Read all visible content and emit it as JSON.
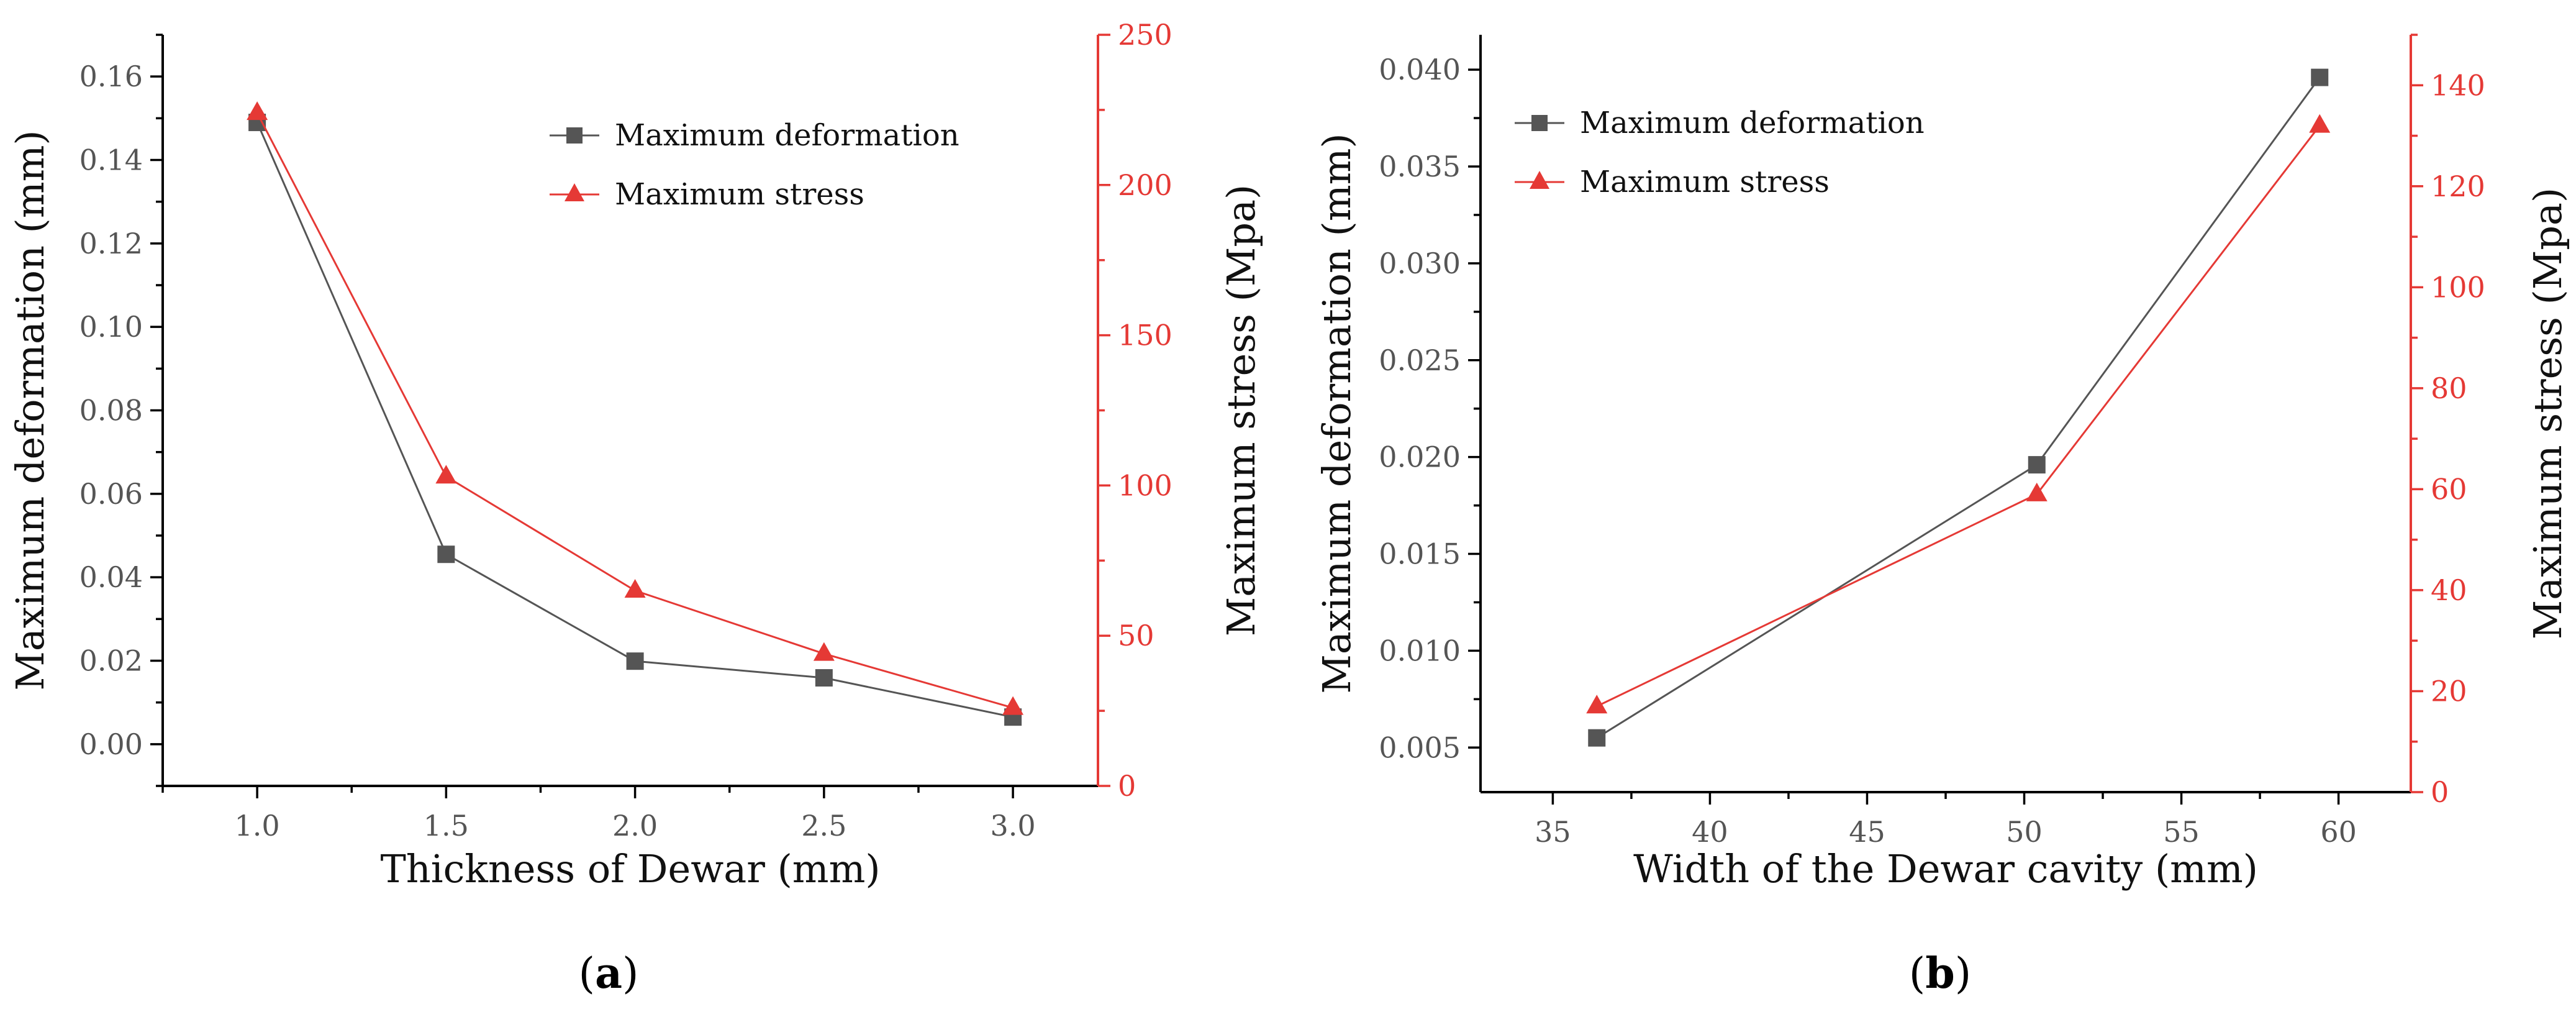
{
  "chart_data": [
    {
      "type": "line",
      "caption_letter": "a",
      "xlabel": "Thickness of Dewar (mm)",
      "ylabel_left": "Maximum deformation (mm)",
      "ylabel_right": "Maximum stress (Mpa)",
      "x": [
        1.0,
        1.5,
        2.0,
        2.5,
        3.0
      ],
      "x_ticks": [
        "1.0",
        "1.5",
        "2.0",
        "2.5",
        "3.0"
      ],
      "x_tick_values": [
        1.0,
        1.5,
        2.0,
        2.5,
        3.0
      ],
      "xlim": [
        0.75,
        3.225
      ],
      "ylim_left": [
        -0.01,
        0.17
      ],
      "y_ticks_left": [
        "0.00",
        "0.02",
        "0.04",
        "0.06",
        "0.08",
        "0.10",
        "0.12",
        "0.14",
        "0.16"
      ],
      "y_tick_values_left": [
        0.0,
        0.02,
        0.04,
        0.06,
        0.08,
        0.1,
        0.12,
        0.14,
        0.16
      ],
      "ylim_right": [
        0,
        250
      ],
      "y_ticks_right": [
        "0",
        "50",
        "100",
        "150",
        "200",
        "250"
      ],
      "y_tick_values_right": [
        0,
        50,
        100,
        150,
        200,
        250
      ],
      "legend_position": "top-right",
      "series": [
        {
          "name": "Maximum deformation",
          "axis": "left",
          "marker": "square",
          "color": "#555555",
          "values": [
            0.149,
            0.0455,
            0.0199,
            0.0159,
            0.0065
          ]
        },
        {
          "name": "Maximum stress",
          "axis": "right",
          "marker": "triangle",
          "color": "#e53935",
          "values": [
            224,
            103,
            65,
            44,
            26
          ]
        }
      ]
    },
    {
      "type": "line",
      "caption_letter": "b",
      "xlabel": "Width of the Dewar cavity (mm)",
      "ylabel_left": "Maximum deformation (mm)",
      "ylabel_right": "Maximum stress (Mpa)",
      "x": [
        36.4,
        50.4,
        59.4
      ],
      "x_ticks": [
        "35",
        "40",
        "45",
        "50",
        "55",
        "60"
      ],
      "x_tick_values": [
        35,
        40,
        45,
        50,
        55,
        60
      ],
      "xlim": [
        32.7,
        62.3
      ],
      "ylim_left": [
        0.0027,
        0.0418
      ],
      "y_ticks_left": [
        "0.005",
        "0.010",
        "0.015",
        "0.020",
        "0.025",
        "0.030",
        "0.035",
        "0.040"
      ],
      "y_tick_values_left": [
        0.005,
        0.01,
        0.015,
        0.02,
        0.025,
        0.03,
        0.035,
        0.04
      ],
      "ylim_right": [
        0,
        150
      ],
      "y_ticks_right": [
        "0",
        "20",
        "40",
        "60",
        "80",
        "100",
        "120",
        "140"
      ],
      "y_tick_values_right": [
        0,
        20,
        40,
        60,
        80,
        100,
        120,
        140
      ],
      "legend_position": "top-left",
      "series": [
        {
          "name": "Maximum deformation",
          "axis": "left",
          "marker": "square",
          "color": "#555555",
          "values": [
            0.0055,
            0.0196,
            0.0396
          ]
        },
        {
          "name": "Maximum stress",
          "axis": "right",
          "marker": "triangle",
          "color": "#e53935",
          "values": [
            17,
            59,
            132
          ]
        }
      ]
    }
  ]
}
